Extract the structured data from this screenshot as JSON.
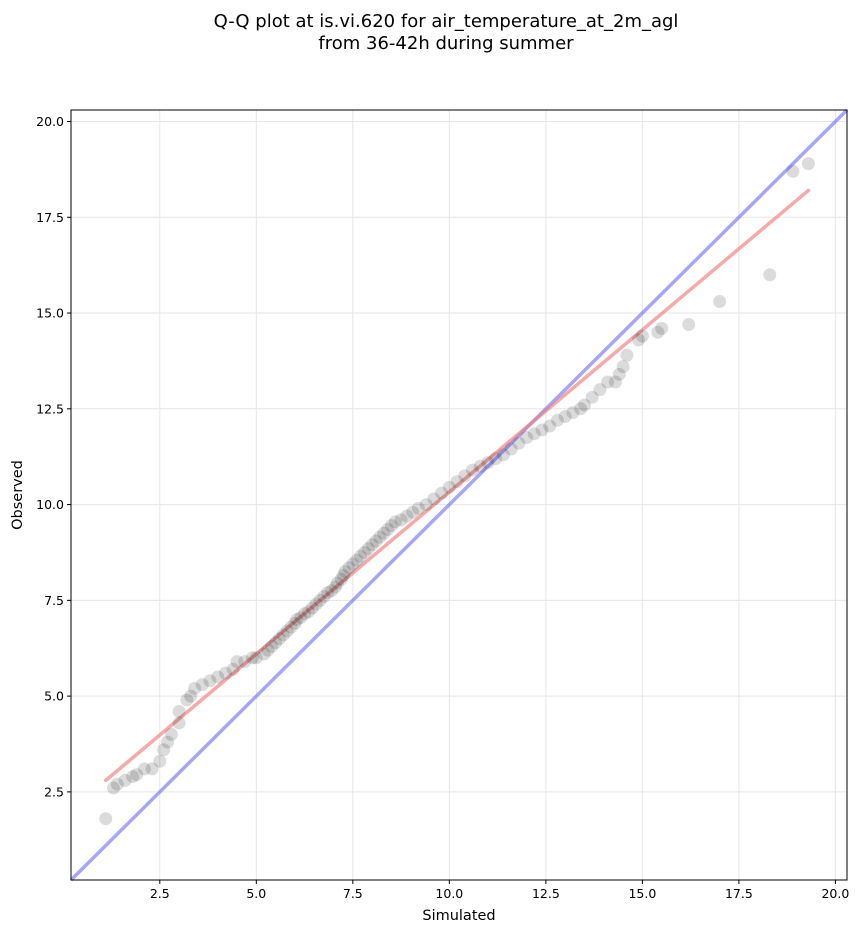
{
  "chart_data": {
    "type": "scatter",
    "title": [
      "Q-Q plot at is.vi.620 for air_temperature_at_2m_agl",
      "from 36-42h during summer"
    ],
    "xlabel": "Simulated",
    "ylabel": "Observed",
    "xlim": [
      0.2,
      20.3
    ],
    "ylim": [
      0.2,
      20.3
    ],
    "xticks": [
      2.5,
      5.0,
      7.5,
      10.0,
      12.5,
      15.0,
      17.5,
      20.0
    ],
    "yticks": [
      2.5,
      5.0,
      7.5,
      10.0,
      12.5,
      15.0,
      17.5,
      20.0
    ],
    "xtick_labels": [
      "2.5",
      "5.0",
      "7.5",
      "10.0",
      "12.5",
      "15.0",
      "17.5",
      "20.0"
    ],
    "ytick_labels": [
      "2.5",
      "5.0",
      "7.5",
      "10.0",
      "12.5",
      "15.0",
      "17.5",
      "20.0"
    ],
    "grid": true,
    "identity_line": {
      "from": [
        0.2,
        0.2
      ],
      "to": [
        20.3,
        20.3
      ],
      "color": "#6b6bf2"
    },
    "fit_line": {
      "from": [
        1.1,
        2.8
      ],
      "to": [
        19.3,
        18.2
      ],
      "color": "#f07c7c"
    },
    "points_color": "#000000",
    "points": [
      [
        1.1,
        1.8
      ],
      [
        1.3,
        2.6
      ],
      [
        1.4,
        2.7
      ],
      [
        1.6,
        2.8
      ],
      [
        1.8,
        2.9
      ],
      [
        1.9,
        2.95
      ],
      [
        2.1,
        3.1
      ],
      [
        2.3,
        3.1
      ],
      [
        2.5,
        3.3
      ],
      [
        2.6,
        3.6
      ],
      [
        2.7,
        3.8
      ],
      [
        2.8,
        4.0
      ],
      [
        3.0,
        4.3
      ],
      [
        3.0,
        4.6
      ],
      [
        3.2,
        4.9
      ],
      [
        3.3,
        5.0
      ],
      [
        3.4,
        5.2
      ],
      [
        3.6,
        5.3
      ],
      [
        3.8,
        5.4
      ],
      [
        4.0,
        5.5
      ],
      [
        4.2,
        5.6
      ],
      [
        4.4,
        5.7
      ],
      [
        4.5,
        5.9
      ],
      [
        4.7,
        5.9
      ],
      [
        4.9,
        6.0
      ],
      [
        5.0,
        6.0
      ],
      [
        5.2,
        6.1
      ],
      [
        5.3,
        6.2
      ],
      [
        5.4,
        6.3
      ],
      [
        5.5,
        6.4
      ],
      [
        5.6,
        6.5
      ],
      [
        5.7,
        6.6
      ],
      [
        5.8,
        6.7
      ],
      [
        5.9,
        6.8
      ],
      [
        6.0,
        6.9
      ],
      [
        6.05,
        7.0
      ],
      [
        6.15,
        7.05
      ],
      [
        6.25,
        7.15
      ],
      [
        6.35,
        7.2
      ],
      [
        6.45,
        7.3
      ],
      [
        6.55,
        7.4
      ],
      [
        6.65,
        7.5
      ],
      [
        6.75,
        7.6
      ],
      [
        6.85,
        7.7
      ],
      [
        6.95,
        7.75
      ],
      [
        7.05,
        7.85
      ],
      [
        7.1,
        7.95
      ],
      [
        7.2,
        8.05
      ],
      [
        7.25,
        8.15
      ],
      [
        7.3,
        8.25
      ],
      [
        7.4,
        8.35
      ],
      [
        7.5,
        8.45
      ],
      [
        7.6,
        8.55
      ],
      [
        7.7,
        8.65
      ],
      [
        7.8,
        8.75
      ],
      [
        7.9,
        8.85
      ],
      [
        8.0,
        8.95
      ],
      [
        8.1,
        9.05
      ],
      [
        8.2,
        9.15
      ],
      [
        8.3,
        9.25
      ],
      [
        8.4,
        9.35
      ],
      [
        8.5,
        9.45
      ],
      [
        8.6,
        9.55
      ],
      [
        8.75,
        9.6
      ],
      [
        8.9,
        9.7
      ],
      [
        9.05,
        9.8
      ],
      [
        9.2,
        9.9
      ],
      [
        9.4,
        10.0
      ],
      [
        9.6,
        10.15
      ],
      [
        9.8,
        10.3
      ],
      [
        10.0,
        10.45
      ],
      [
        10.2,
        10.6
      ],
      [
        10.4,
        10.75
      ],
      [
        10.6,
        10.9
      ],
      [
        10.8,
        11.0
      ],
      [
        11.0,
        11.1
      ],
      [
        11.2,
        11.2
      ],
      [
        11.4,
        11.3
      ],
      [
        11.6,
        11.45
      ],
      [
        11.8,
        11.6
      ],
      [
        12.0,
        11.75
      ],
      [
        12.2,
        11.85
      ],
      [
        12.4,
        11.95
      ],
      [
        12.6,
        12.05
      ],
      [
        12.8,
        12.2
      ],
      [
        13.0,
        12.3
      ],
      [
        13.2,
        12.4
      ],
      [
        13.4,
        12.5
      ],
      [
        13.5,
        12.6
      ],
      [
        13.7,
        12.8
      ],
      [
        13.9,
        13.0
      ],
      [
        14.1,
        13.2
      ],
      [
        14.3,
        13.2
      ],
      [
        14.4,
        13.4
      ],
      [
        14.5,
        13.6
      ],
      [
        14.6,
        13.9
      ],
      [
        14.9,
        14.3
      ],
      [
        15.0,
        14.4
      ],
      [
        15.4,
        14.5
      ],
      [
        15.5,
        14.6
      ],
      [
        16.2,
        14.7
      ],
      [
        17.0,
        15.3
      ],
      [
        18.3,
        16.0
      ],
      [
        18.9,
        18.7
      ],
      [
        19.3,
        18.9
      ]
    ]
  }
}
